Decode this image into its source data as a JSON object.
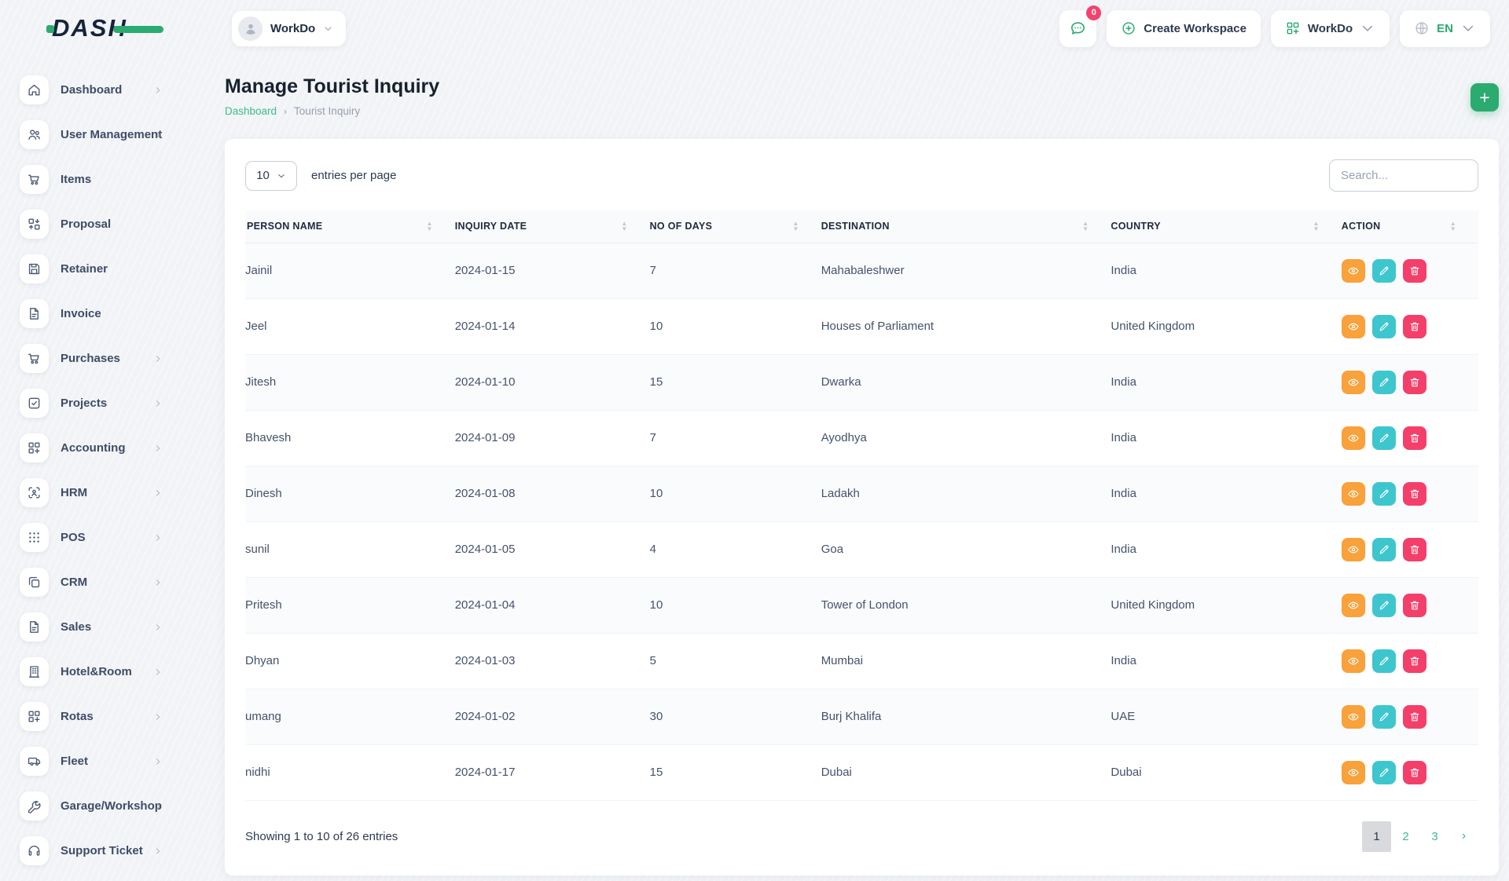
{
  "colors": {
    "accent_green": "#2bab70",
    "link_green": "#3dbc85",
    "view_orange": "#F9A13B",
    "edit_teal": "#3EC6CF",
    "delete_pink": "#F43F6B",
    "badge_pink": "#f4426e",
    "navy_text": "#16233c"
  },
  "logo": {
    "text": "DASH"
  },
  "header": {
    "workspace_pill": {
      "label": "WorkDo"
    },
    "chat": {
      "badge": "0"
    },
    "create_workspace_label": "Create Workspace",
    "workspace_menu_label": "WorkDo",
    "language": "EN"
  },
  "sidebar": {
    "items": [
      {
        "label": "Dashboard",
        "icon": "home",
        "expandable": true
      },
      {
        "label": "User Management",
        "icon": "users",
        "expandable": true
      },
      {
        "label": "Items",
        "icon": "cart",
        "expandable": false
      },
      {
        "label": "Proposal",
        "icon": "grid-swap",
        "expandable": false
      },
      {
        "label": "Retainer",
        "icon": "save",
        "expandable": false
      },
      {
        "label": "Invoice",
        "icon": "file",
        "expandable": false
      },
      {
        "label": "Purchases",
        "icon": "cart",
        "expandable": true
      },
      {
        "label": "Projects",
        "icon": "check-square",
        "expandable": true
      },
      {
        "label": "Accounting",
        "icon": "grid-plus",
        "expandable": true
      },
      {
        "label": "HRM",
        "icon": "scan-user",
        "expandable": true
      },
      {
        "label": "POS",
        "icon": "dots-grid",
        "expandable": true
      },
      {
        "label": "CRM",
        "icon": "copy",
        "expandable": true
      },
      {
        "label": "Sales",
        "icon": "file",
        "expandable": true
      },
      {
        "label": "Hotel&Room",
        "icon": "building",
        "expandable": true
      },
      {
        "label": "Rotas",
        "icon": "grid-plus",
        "expandable": true
      },
      {
        "label": "Fleet",
        "icon": "van",
        "expandable": true
      },
      {
        "label": "Garage/Workshop",
        "icon": "wrench",
        "expandable": true
      },
      {
        "label": "Support Ticket",
        "icon": "headset",
        "expandable": true
      }
    ]
  },
  "page": {
    "title": "Manage Tourist Inquiry",
    "breadcrumb": {
      "root": "Dashboard",
      "separator": "›",
      "current": "Tourist Inquiry"
    }
  },
  "table": {
    "entries_value": "10",
    "entries_label": "entries per page",
    "search_placeholder": "Search...",
    "columns": [
      "PERSON NAME",
      "INQUIRY DATE",
      "NO OF DAYS",
      "DESTINATION",
      "COUNTRY",
      "ACTION"
    ],
    "rows": [
      {
        "name": "Jainil",
        "date": "2024-01-15",
        "days": "7",
        "destination": "Mahabaleshwer",
        "country": "India"
      },
      {
        "name": "Jeel",
        "date": "2024-01-14",
        "days": "10",
        "destination": "Houses of Parliament",
        "country": "United Kingdom"
      },
      {
        "name": "Jitesh",
        "date": "2024-01-10",
        "days": "15",
        "destination": "Dwarka",
        "country": "India"
      },
      {
        "name": "Bhavesh",
        "date": "2024-01-09",
        "days": "7",
        "destination": "Ayodhya",
        "country": "India"
      },
      {
        "name": "Dinesh",
        "date": "2024-01-08",
        "days": "10",
        "destination": "Ladakh",
        "country": "India"
      },
      {
        "name": "sunil",
        "date": "2024-01-05",
        "days": "4",
        "destination": "Goa",
        "country": "India"
      },
      {
        "name": "Pritesh",
        "date": "2024-01-04",
        "days": "10",
        "destination": "Tower of London",
        "country": "United Kingdom"
      },
      {
        "name": "Dhyan",
        "date": "2024-01-03",
        "days": "5",
        "destination": "Mumbai",
        "country": "India"
      },
      {
        "name": "umang",
        "date": "2024-01-02",
        "days": "30",
        "destination": "Burj Khalifa",
        "country": "UAE"
      },
      {
        "name": "nidhi",
        "date": "2024-01-17",
        "days": "15",
        "destination": "Dubai",
        "country": "Dubai"
      }
    ],
    "row_actions": [
      {
        "name": "view",
        "icon": "eye",
        "color": "#F9A13B"
      },
      {
        "name": "edit",
        "icon": "pencil",
        "color": "#3EC6CF"
      },
      {
        "name": "delete",
        "icon": "trash",
        "color": "#F43F6B"
      }
    ],
    "footer": {
      "showing_text": "Showing 1 to 10 of 26 entries",
      "pages": [
        "1",
        "2",
        "3"
      ],
      "active_page": "1",
      "next_label": "›"
    }
  }
}
